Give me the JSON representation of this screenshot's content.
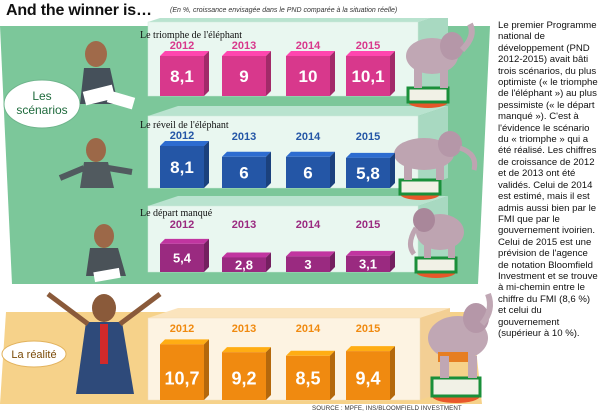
{
  "header": {
    "title": "And the winner is…",
    "subtitle": "(En %, croissance envisagée dans le PND comparée à la situation réelle)"
  },
  "section_labels": {
    "scenarios": [
      "Les",
      "scénarios"
    ],
    "reality": "La réalité"
  },
  "source": "SOURCE : MPFE, INS/BLOOMFIELD INVESTMENT",
  "sidebar_text": "Le premier Programme national de développement (PND 2012-2015) avait bâti trois scénarios, du plus optimiste (« le triomphe de l'éléphant ») au plus pessimiste (« le départ manqué »). C'est à l'évidence le scénario du « triomphe » qui a été réalisé. Les chiffres de croissance de 2012 et de 2013 ont été validés. Celui de 2014 est estimé, mais il est admis aussi bien par le FMI que par le gouvernement ivoirien. Celui de 2015 est une prévision de l'agence de notation Bloomfield Investment et se trouve à mi-chemin entre le chiffre du FMI (8,6 %) et celui du gouvernement (supérieur à 10 %).",
  "chart_data": [
    {
      "type": "bar",
      "title": "Le triomphe de l'éléphant",
      "group": "scénarios",
      "color": "#d8388c",
      "categories": [
        "2012",
        "2013",
        "2014",
        "2015"
      ],
      "values": [
        8.1,
        9,
        10,
        10.1
      ],
      "labels": [
        "8,1",
        "9",
        "10",
        "10,1"
      ]
    },
    {
      "type": "bar",
      "title": "Le réveil de l'éléphant",
      "group": "scénarios",
      "color": "#2456a6",
      "categories": [
        "2012",
        "2013",
        "2014",
        "2015"
      ],
      "values": [
        8.1,
        6,
        6,
        5.8
      ],
      "labels": [
        "8,1",
        "6",
        "6",
        "5,8"
      ]
    },
    {
      "type": "bar",
      "title": "Le départ manqué",
      "group": "scénarios",
      "color": "#9a2a80",
      "categories": [
        "2012",
        "2013",
        "2014",
        "2015"
      ],
      "values": [
        5.4,
        2.8,
        3,
        3.1
      ],
      "labels": [
        "5,4",
        "2,8",
        "3",
        "3,1"
      ]
    },
    {
      "type": "bar",
      "title": "",
      "group": "La réalité",
      "color": "#f08a10",
      "categories": [
        "2012",
        "2013",
        "2014",
        "2015"
      ],
      "values": [
        10.7,
        9.2,
        8.5,
        9.4
      ],
      "labels": [
        "10,7",
        "9,2",
        "8,5",
        "9,4"
      ]
    }
  ],
  "colors": {
    "scenario_band": "#7cc79a",
    "reality_band": "#f6d28a",
    "scenario_panel": "#d7f0e5",
    "reality_panel": "#fdf0dc"
  }
}
